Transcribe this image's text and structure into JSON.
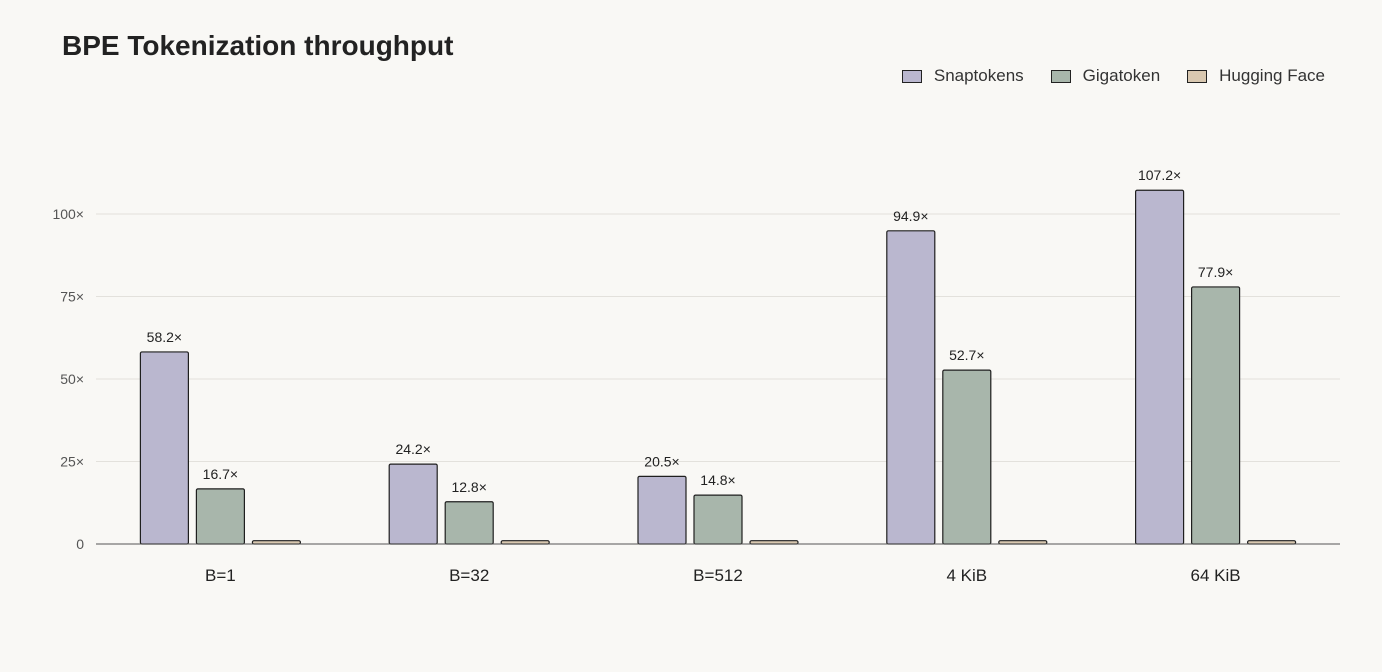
{
  "chart_data": {
    "type": "bar",
    "title": "BPE Tokenization throughput",
    "categories": [
      "B=1",
      "B=32",
      "B=512",
      "4 KiB",
      "64 KiB"
    ],
    "series": [
      {
        "name": "Snaptokens",
        "values": [
          58.2,
          24.2,
          20.5,
          94.9,
          107.2
        ],
        "labels": [
          "58.2×",
          "24.2×",
          "20.5×",
          "94.9×",
          "107.2×"
        ],
        "color": "#bab7cf"
      },
      {
        "name": "Gigatoken",
        "values": [
          16.7,
          12.8,
          14.8,
          52.7,
          77.9
        ],
        "labels": [
          "16.7×",
          "12.8×",
          "14.8×",
          "52.7×",
          "77.9×"
        ],
        "color": "#a8b6ab"
      },
      {
        "name": "Hugging Face",
        "values": [
          1,
          1,
          1,
          1,
          1
        ],
        "labels": [
          "",
          "",
          "",
          "",
          ""
        ],
        "color": "#d9c8b0"
      }
    ],
    "ylim": [
      0,
      110
    ],
    "yticks": [
      0,
      25,
      50,
      75,
      100
    ],
    "ytick_labels": [
      "0",
      "25×",
      "50×",
      "75×",
      "100×"
    ],
    "grid": true,
    "legend_position": "top-right"
  }
}
